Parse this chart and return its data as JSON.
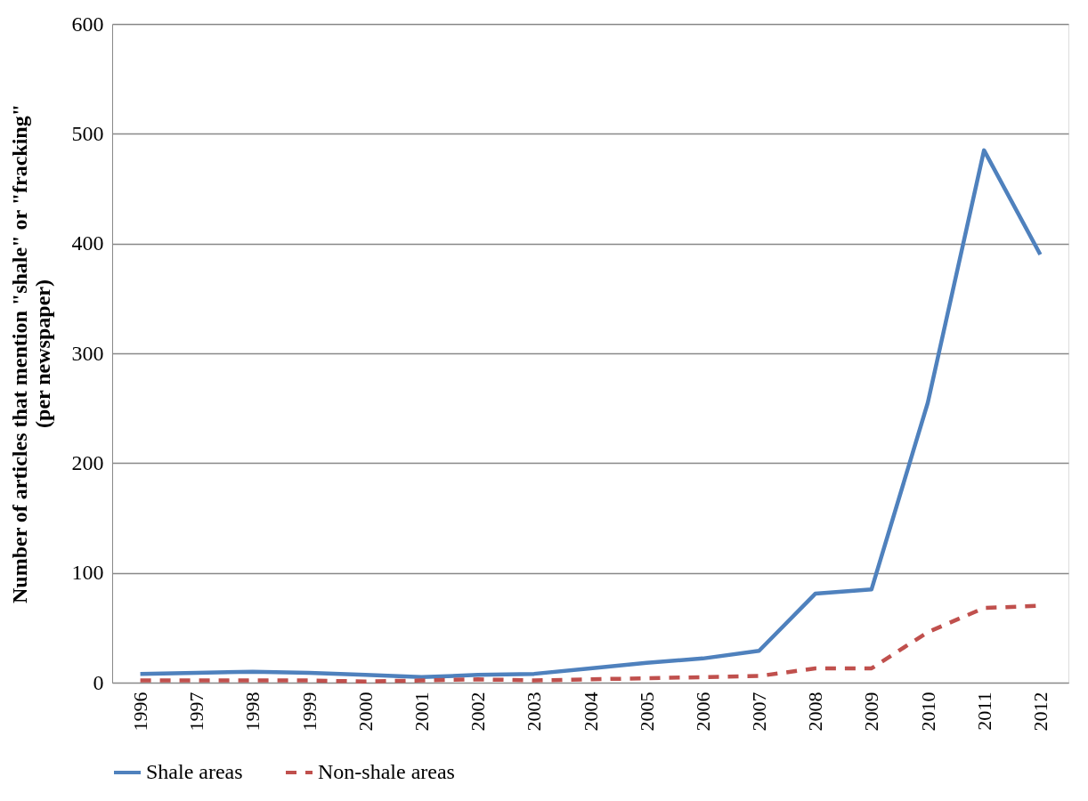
{
  "chart_data": {
    "type": "line",
    "ylabel": "Number of articles that mention \"shale\" or \"fracking\"\n(per newspaper)",
    "categories": [
      "1996",
      "1997",
      "1998",
      "1999",
      "2000",
      "2001",
      "2002",
      "2003",
      "2004",
      "2005",
      "2006",
      "2007",
      "2008",
      "2009",
      "2010",
      "2011",
      "2012"
    ],
    "series": [
      {
        "name": "Shale areas",
        "color": "#4f81bd",
        "line_style": "solid",
        "values": [
          8,
          9,
          10,
          9,
          7,
          5,
          7,
          8,
          13,
          18,
          22,
          29,
          81,
          85,
          255,
          485,
          390
        ]
      },
      {
        "name": "Non-shale areas",
        "color": "#c0504d",
        "line_style": "dashed",
        "values": [
          2,
          2,
          2,
          2,
          1,
          2,
          3,
          2,
          3,
          4,
          5,
          6,
          13,
          13,
          46,
          68,
          70
        ]
      }
    ],
    "ylim": [
      0,
      600
    ],
    "yticks": [
      0,
      100,
      200,
      300,
      400,
      500,
      600
    ],
    "grid": "y",
    "legend": "bottom",
    "marker": "none"
  }
}
